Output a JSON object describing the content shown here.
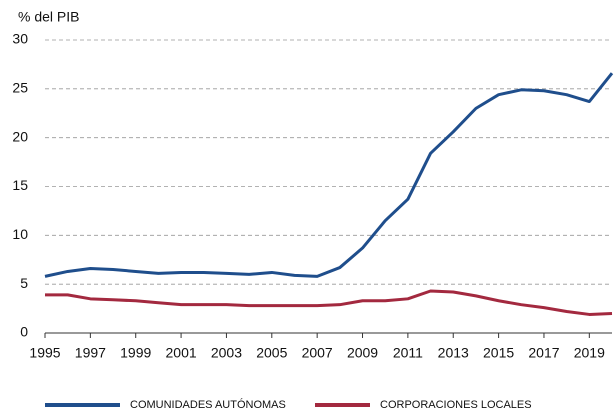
{
  "chart_data": {
    "type": "line",
    "y_label": "% del PIB",
    "x": [
      1995,
      1996,
      1997,
      1998,
      1999,
      2000,
      2001,
      2002,
      2003,
      2004,
      2005,
      2006,
      2007,
      2008,
      2009,
      2010,
      2011,
      2012,
      2013,
      2014,
      2015,
      2016,
      2017,
      2018,
      2019,
      2020
    ],
    "series": [
      {
        "name": "COMUNIDADES AUTÓNOMAS",
        "color": "#1f4e8c",
        "values": [
          5.8,
          6.3,
          6.6,
          6.5,
          6.3,
          6.1,
          6.2,
          6.2,
          6.1,
          6.0,
          6.2,
          5.9,
          5.8,
          6.7,
          8.7,
          11.5,
          13.7,
          18.4,
          20.6,
          23.0,
          24.4,
          24.9,
          24.8,
          24.4,
          23.7,
          26.6
        ]
      },
      {
        "name": "CORPORACIONES LOCALES",
        "color": "#a3293f",
        "values": [
          3.9,
          3.9,
          3.5,
          3.4,
          3.3,
          3.1,
          2.9,
          2.9,
          2.9,
          2.8,
          2.8,
          2.8,
          2.8,
          2.9,
          3.3,
          3.3,
          3.5,
          4.3,
          4.2,
          3.8,
          3.3,
          2.9,
          2.6,
          2.2,
          1.9,
          2.0
        ]
      }
    ],
    "xlim": [
      1995,
      2020
    ],
    "xticks": [
      1995,
      1997,
      1999,
      2001,
      2003,
      2005,
      2007,
      2009,
      2011,
      2013,
      2015,
      2017,
      2019
    ],
    "ylim": [
      0,
      30
    ],
    "yticks": [
      0,
      5,
      10,
      15,
      20,
      25,
      30
    ],
    "grid": true,
    "legend": "bottom"
  }
}
